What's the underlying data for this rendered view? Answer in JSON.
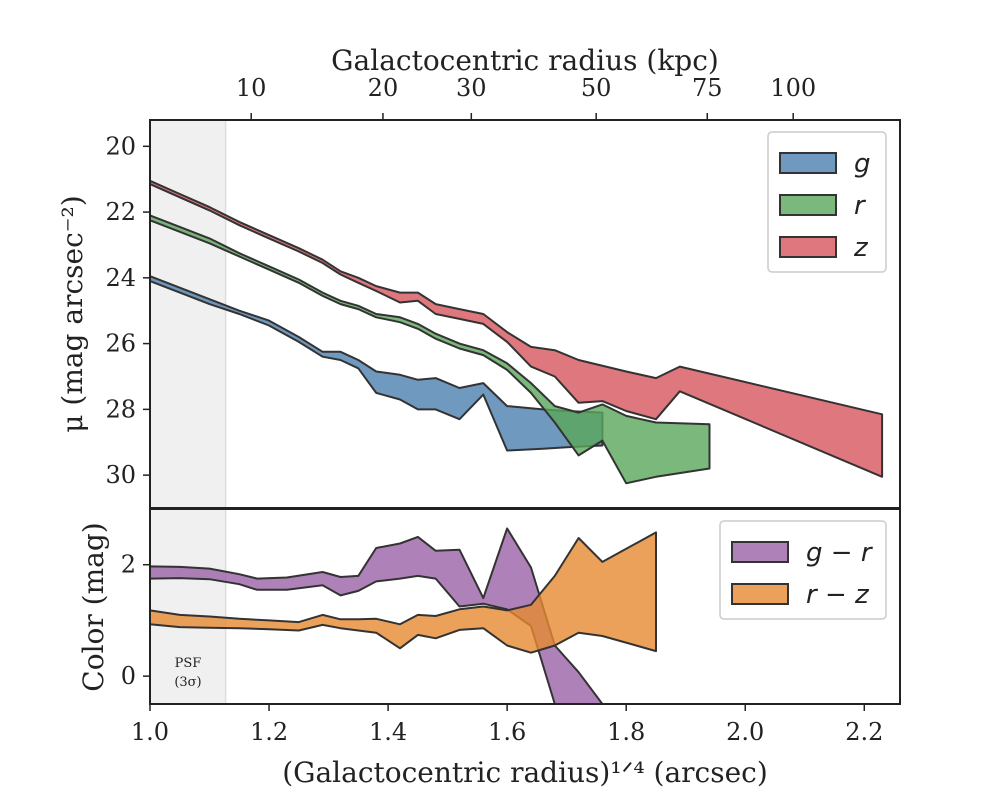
{
  "chart_data": [
    {
      "type": "area",
      "panel": "surface-brightness",
      "ylabel": "μ (mag arcsec⁻²)",
      "top_xlabel": "Galactocentric radius (kpc)",
      "top_ticks": [
        10,
        20,
        30,
        50,
        75,
        100
      ],
      "top_tick_labels": [
        "10",
        "20",
        "30",
        "50",
        "75",
        "100"
      ],
      "xlim": [
        1.0,
        2.26
      ],
      "ylim": [
        31.0,
        19.2
      ],
      "y_ticks": [
        20,
        22,
        24,
        26,
        28,
        30
      ],
      "y_tick_labels": [
        "20",
        "22",
        "24",
        "26",
        "28",
        "30"
      ],
      "legend_position": "top-right",
      "series": [
        {
          "name": "g",
          "color": "#4c7fb0",
          "upper": [
            [
              1.0,
              23.95
            ],
            [
              1.05,
              24.3
            ],
            [
              1.1,
              24.65
            ],
            [
              1.15,
              25.0
            ],
            [
              1.2,
              25.3
            ],
            [
              1.25,
              25.8
            ],
            [
              1.29,
              26.25
            ],
            [
              1.32,
              26.25
            ],
            [
              1.35,
              26.5
            ],
            [
              1.38,
              26.85
            ],
            [
              1.42,
              26.95
            ],
            [
              1.45,
              27.1
            ],
            [
              1.48,
              27.05
            ],
            [
              1.52,
              27.35
            ],
            [
              1.56,
              27.2
            ],
            [
              1.6,
              27.9
            ],
            [
              1.66,
              28.0
            ],
            [
              1.7,
              28.05
            ],
            [
              1.76,
              28.1
            ]
          ],
          "lower": [
            [
              1.0,
              24.1
            ],
            [
              1.05,
              24.45
            ],
            [
              1.1,
              24.8
            ],
            [
              1.15,
              25.1
            ],
            [
              1.2,
              25.45
            ],
            [
              1.25,
              25.95
            ],
            [
              1.29,
              26.4
            ],
            [
              1.32,
              26.5
            ],
            [
              1.35,
              26.75
            ],
            [
              1.38,
              27.5
            ],
            [
              1.42,
              27.7
            ],
            [
              1.45,
              28.0
            ],
            [
              1.48,
              28.0
            ],
            [
              1.52,
              28.3
            ],
            [
              1.56,
              27.55
            ],
            [
              1.6,
              29.25
            ],
            [
              1.66,
              29.2
            ],
            [
              1.7,
              29.15
            ],
            [
              1.76,
              29.1
            ]
          ]
        },
        {
          "name": "r",
          "color": "#5aa65a",
          "upper": [
            [
              1.0,
              22.1
            ],
            [
              1.05,
              22.45
            ],
            [
              1.1,
              22.8
            ],
            [
              1.15,
              23.25
            ],
            [
              1.2,
              23.65
            ],
            [
              1.25,
              24.05
            ],
            [
              1.29,
              24.45
            ],
            [
              1.32,
              24.7
            ],
            [
              1.35,
              24.85
            ],
            [
              1.38,
              25.1
            ],
            [
              1.42,
              25.2
            ],
            [
              1.45,
              25.4
            ],
            [
              1.48,
              25.7
            ],
            [
              1.52,
              26.0
            ],
            [
              1.56,
              26.2
            ],
            [
              1.6,
              26.6
            ],
            [
              1.64,
              27.2
            ],
            [
              1.68,
              27.9
            ],
            [
              1.72,
              28.1
            ],
            [
              1.76,
              27.85
            ],
            [
              1.8,
              28.2
            ],
            [
              1.85,
              28.4
            ],
            [
              1.94,
              28.45
            ]
          ],
          "lower": [
            [
              1.0,
              22.25
            ],
            [
              1.05,
              22.6
            ],
            [
              1.1,
              22.95
            ],
            [
              1.15,
              23.35
            ],
            [
              1.2,
              23.75
            ],
            [
              1.25,
              24.15
            ],
            [
              1.29,
              24.55
            ],
            [
              1.32,
              24.8
            ],
            [
              1.35,
              24.95
            ],
            [
              1.38,
              25.2
            ],
            [
              1.42,
              25.35
            ],
            [
              1.45,
              25.55
            ],
            [
              1.48,
              25.85
            ],
            [
              1.52,
              26.15
            ],
            [
              1.56,
              26.35
            ],
            [
              1.6,
              26.8
            ],
            [
              1.64,
              27.5
            ],
            [
              1.68,
              28.4
            ],
            [
              1.72,
              29.4
            ],
            [
              1.76,
              28.95
            ],
            [
              1.8,
              30.25
            ],
            [
              1.85,
              30.05
            ],
            [
              1.94,
              29.8
            ]
          ]
        },
        {
          "name": "z",
          "color": "#d6555e",
          "upper": [
            [
              1.0,
              21.05
            ],
            [
              1.05,
              21.45
            ],
            [
              1.1,
              21.85
            ],
            [
              1.15,
              22.3
            ],
            [
              1.2,
              22.7
            ],
            [
              1.25,
              23.1
            ],
            [
              1.29,
              23.45
            ],
            [
              1.32,
              23.8
            ],
            [
              1.35,
              24.0
            ],
            [
              1.38,
              24.25
            ],
            [
              1.42,
              24.45
            ],
            [
              1.45,
              24.45
            ],
            [
              1.48,
              24.8
            ],
            [
              1.52,
              24.95
            ],
            [
              1.56,
              25.1
            ],
            [
              1.6,
              25.65
            ],
            [
              1.64,
              26.1
            ],
            [
              1.68,
              26.2
            ],
            [
              1.72,
              26.5
            ],
            [
              1.8,
              26.85
            ],
            [
              1.85,
              27.05
            ],
            [
              1.89,
              26.7
            ],
            [
              2.23,
              28.15
            ]
          ],
          "lower": [
            [
              1.0,
              21.15
            ],
            [
              1.05,
              21.55
            ],
            [
              1.1,
              21.95
            ],
            [
              1.15,
              22.4
            ],
            [
              1.2,
              22.8
            ],
            [
              1.25,
              23.2
            ],
            [
              1.29,
              23.55
            ],
            [
              1.32,
              23.9
            ],
            [
              1.35,
              24.15
            ],
            [
              1.38,
              24.4
            ],
            [
              1.42,
              24.75
            ],
            [
              1.45,
              24.7
            ],
            [
              1.48,
              25.1
            ],
            [
              1.52,
              25.25
            ],
            [
              1.56,
              25.4
            ],
            [
              1.6,
              25.95
            ],
            [
              1.64,
              26.7
            ],
            [
              1.68,
              27.0
            ],
            [
              1.72,
              27.8
            ],
            [
              1.76,
              27.75
            ],
            [
              1.8,
              28.05
            ],
            [
              1.85,
              28.3
            ],
            [
              1.89,
              27.45
            ],
            [
              2.23,
              30.05
            ]
          ]
        }
      ]
    },
    {
      "type": "area",
      "panel": "color",
      "xlabel": "(Galactocentric radius)¹ᐟ⁴ (arcsec)",
      "ylabel": "Color (mag)",
      "xlim": [
        1.0,
        2.26
      ],
      "ylim": [
        -0.5,
        3.0
      ],
      "x_ticks": [
        1.0,
        1.2,
        1.4,
        1.6,
        1.8,
        2.0,
        2.2
      ],
      "x_tick_labels": [
        "1.0",
        "1.2",
        "1.4",
        "1.6",
        "1.8",
        "2.0",
        "2.2"
      ],
      "y_ticks": [
        0,
        2
      ],
      "y_tick_labels": [
        "0",
        "2"
      ],
      "legend_position": "top-right",
      "annotation": "PSF",
      "annotation_sub": "(3σ)",
      "psf_region": [
        1.0,
        1.127
      ],
      "series": [
        {
          "name": "g − r",
          "color": "#9b62a7",
          "upper": [
            [
              1.0,
              1.97
            ],
            [
              1.05,
              1.96
            ],
            [
              1.1,
              1.93
            ],
            [
              1.15,
              1.83
            ],
            [
              1.18,
              1.75
            ],
            [
              1.23,
              1.77
            ],
            [
              1.29,
              1.87
            ],
            [
              1.32,
              1.78
            ],
            [
              1.35,
              1.8
            ],
            [
              1.38,
              2.3
            ],
            [
              1.42,
              2.38
            ],
            [
              1.45,
              2.5
            ],
            [
              1.48,
              2.25
            ],
            [
              1.52,
              2.27
            ],
            [
              1.56,
              1.4
            ],
            [
              1.6,
              2.65
            ],
            [
              1.64,
              1.95
            ],
            [
              1.68,
              0.55
            ],
            [
              1.72,
              0.07
            ],
            [
              1.76,
              -0.5
            ]
          ],
          "lower": [
            [
              1.0,
              1.75
            ],
            [
              1.05,
              1.76
            ],
            [
              1.1,
              1.74
            ],
            [
              1.15,
              1.65
            ],
            [
              1.18,
              1.55
            ],
            [
              1.23,
              1.55
            ],
            [
              1.29,
              1.63
            ],
            [
              1.32,
              1.45
            ],
            [
              1.35,
              1.53
            ],
            [
              1.38,
              1.7
            ],
            [
              1.42,
              1.75
            ],
            [
              1.45,
              1.8
            ],
            [
              1.48,
              1.75
            ],
            [
              1.52,
              1.25
            ],
            [
              1.56,
              1.3
            ],
            [
              1.6,
              1.2
            ],
            [
              1.64,
              0.9
            ],
            [
              1.68,
              -0.5
            ],
            [
              1.72,
              -0.5
            ],
            [
              1.76,
              -0.5
            ]
          ]
        },
        {
          "name": "r − z",
          "color": "#e68a31",
          "upper": [
            [
              1.0,
              1.18
            ],
            [
              1.05,
              1.1
            ],
            [
              1.1,
              1.07
            ],
            [
              1.15,
              1.03
            ],
            [
              1.2,
              1.0
            ],
            [
              1.25,
              0.97
            ],
            [
              1.29,
              1.1
            ],
            [
              1.32,
              1.02
            ],
            [
              1.35,
              1.02
            ],
            [
              1.38,
              1.03
            ],
            [
              1.42,
              0.93
            ],
            [
              1.45,
              1.1
            ],
            [
              1.48,
              1.08
            ],
            [
              1.52,
              1.2
            ],
            [
              1.56,
              1.25
            ],
            [
              1.6,
              1.18
            ],
            [
              1.64,
              1.28
            ],
            [
              1.68,
              1.8
            ],
            [
              1.72,
              2.48
            ],
            [
              1.76,
              2.05
            ],
            [
              1.85,
              2.58
            ]
          ],
          "lower": [
            [
              1.0,
              0.93
            ],
            [
              1.05,
              0.88
            ],
            [
              1.1,
              0.87
            ],
            [
              1.15,
              0.86
            ],
            [
              1.2,
              0.84
            ],
            [
              1.25,
              0.82
            ],
            [
              1.29,
              0.92
            ],
            [
              1.32,
              0.86
            ],
            [
              1.35,
              0.82
            ],
            [
              1.38,
              0.78
            ],
            [
              1.42,
              0.5
            ],
            [
              1.45,
              0.74
            ],
            [
              1.48,
              0.68
            ],
            [
              1.52,
              0.83
            ],
            [
              1.56,
              0.86
            ],
            [
              1.6,
              0.55
            ],
            [
              1.64,
              0.42
            ],
            [
              1.68,
              0.55
            ],
            [
              1.72,
              0.78
            ],
            [
              1.76,
              0.72
            ],
            [
              1.85,
              0.45
            ]
          ]
        }
      ]
    }
  ]
}
